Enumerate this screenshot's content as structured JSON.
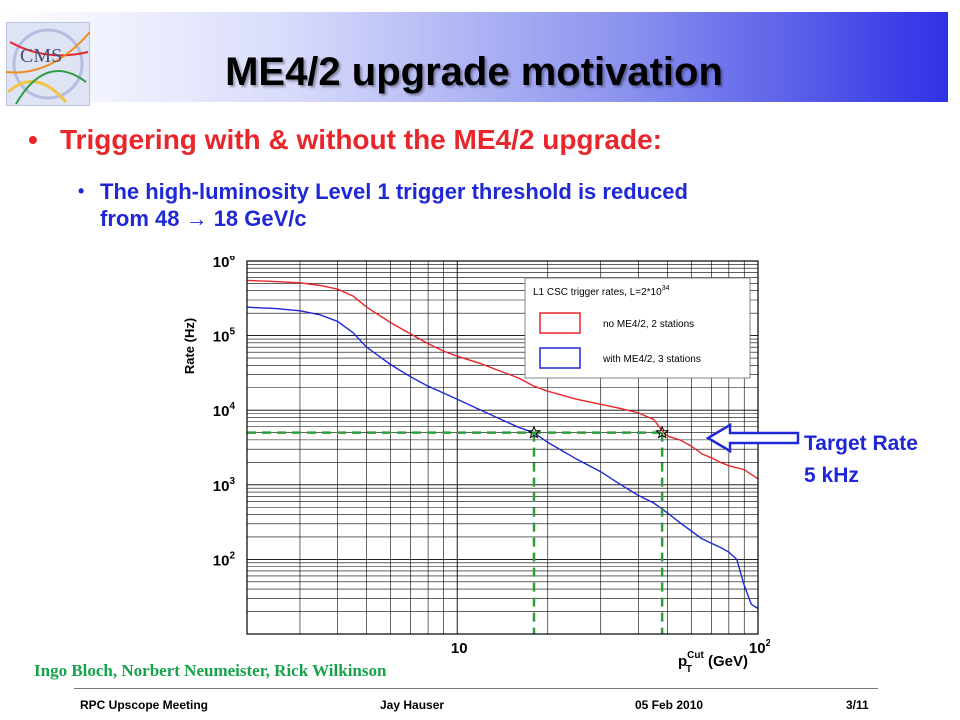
{
  "title": "ME4/2 upgrade motivation",
  "bullets": {
    "main": "Triggering with & without the ME4/2 upgrade:",
    "sub_line1": "The high-luminosity Level 1 trigger threshold is reduced",
    "sub_line2": "from 48  → 18 GeV/c"
  },
  "logo_text": "CMS",
  "target_label": {
    "line1": "Target Rate",
    "line2": "5 kHz"
  },
  "credits": "Ingo Bloch, Norbert Neumeister,  Rick Wilkinson",
  "footer": {
    "meeting": "RPC Upscope Meeting",
    "author": "Jay Hauser",
    "date": "05 Feb 2010",
    "page": "3/11"
  },
  "colors": {
    "red_series": "#e8262b",
    "blue_series": "#1f28d6",
    "target_line": "#2e9e3a",
    "arrow": "#1f28d6"
  },
  "chart_data": {
    "type": "line",
    "xlabel": "p_T^Cut (GeV)",
    "ylabel": "Rate (Hz)",
    "x_scale": "log",
    "y_scale": "log",
    "xlim": [
      2,
      100
    ],
    "ylim": [
      10,
      1000000
    ],
    "xticks": [
      {
        "value": 10,
        "label": "10"
      },
      {
        "value": 100,
        "label": "10^2"
      }
    ],
    "yticks": [
      {
        "value": 100,
        "label": "10^2"
      },
      {
        "value": 1000,
        "label": "10^3"
      },
      {
        "value": 10000,
        "label": "10^4"
      },
      {
        "value": 100000,
        "label": "10^5"
      },
      {
        "value": 1000000,
        "label": "10^6"
      }
    ],
    "grid": true,
    "legend": {
      "title": "L1 CSC trigger rates, L=2*10^34",
      "position": "top-right",
      "entries": [
        "no ME4/2, 2 stations",
        "with ME4/2, 3 stations"
      ]
    },
    "series": [
      {
        "name": "no ME4/2, 2 stations",
        "x": [
          2.0,
          2.5,
          3.0,
          3.5,
          4.0,
          4.5,
          5.0,
          6.0,
          7.0,
          8.0,
          9.0,
          10.0,
          12.0,
          14.0,
          16.0,
          18.0,
          20.0,
          25.0,
          30.0,
          35.0,
          40.0,
          45.0,
          48.0,
          50.0,
          55.0,
          60.0,
          65.0,
          70.0,
          75.0,
          80.0,
          90.0,
          100.0
        ],
        "y": [
          550000,
          530000,
          510000,
          470000,
          420000,
          340000,
          240000,
          150000,
          105000,
          78000,
          62000,
          53000,
          42000,
          33000,
          27000,
          21000,
          18000,
          14000,
          12000,
          10500,
          9200,
          7500,
          5300,
          4500,
          4000,
          3300,
          2600,
          2300,
          2000,
          1800,
          1600,
          1200
        ]
      },
      {
        "name": "with ME4/2, 3 stations",
        "x": [
          2.0,
          2.5,
          3.0,
          3.5,
          4.0,
          4.5,
          5.0,
          6.0,
          7.0,
          8.0,
          9.0,
          10.0,
          12.0,
          14.0,
          16.0,
          18.0,
          20.0,
          25.0,
          30.0,
          35.0,
          40.0,
          45.0,
          50.0,
          55.0,
          60.0,
          65.0,
          70.0,
          75.0,
          80.0,
          85.0,
          90.0,
          95.0,
          100.0
        ],
        "y": [
          240000,
          230000,
          215000,
          190000,
          155000,
          110000,
          70000,
          41000,
          28000,
          21000,
          17000,
          14000,
          10000,
          7500,
          5900,
          5000,
          3700,
          2200,
          1500,
          1000,
          720,
          570,
          420,
          310,
          240,
          190,
          165,
          145,
          125,
          100,
          45,
          25,
          22
        ]
      }
    ],
    "annotations": [
      {
        "type": "hline",
        "y": 5000,
        "style": "dashed",
        "color": "green",
        "x_range": [
          2,
          48
        ]
      },
      {
        "type": "vline",
        "x": 18,
        "style": "dashed",
        "color": "green"
      },
      {
        "type": "vline",
        "x": 48,
        "style": "dashed",
        "color": "green"
      },
      {
        "type": "marker",
        "symbol": "star",
        "x": 18,
        "y": 5000
      },
      {
        "type": "marker",
        "symbol": "star",
        "x": 48,
        "y": 5000
      }
    ]
  }
}
